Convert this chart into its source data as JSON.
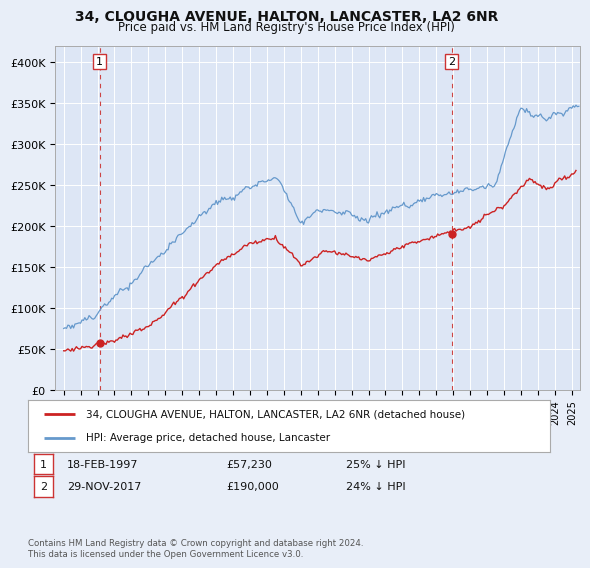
{
  "title": "34, CLOUGHA AVENUE, HALTON, LANCASTER, LA2 6NR",
  "subtitle": "Price paid vs. HM Land Registry's House Price Index (HPI)",
  "bg_color": "#e8eef8",
  "plot_bg_color": "#dde6f5",
  "grid_color": "#ffffff",
  "red_line_label": "34, CLOUGHA AVENUE, HALTON, LANCASTER, LA2 6NR (detached house)",
  "blue_line_label": "HPI: Average price, detached house, Lancaster",
  "annotation1_date": "18-FEB-1997",
  "annotation1_price": "£57,230",
  "annotation1_hpi": "25% ↓ HPI",
  "annotation2_date": "29-NOV-2017",
  "annotation2_price": "£190,000",
  "annotation2_hpi": "24% ↓ HPI",
  "footer": "Contains HM Land Registry data © Crown copyright and database right 2024.\nThis data is licensed under the Open Government Licence v3.0.",
  "ylim": [
    0,
    420000
  ],
  "yticks": [
    0,
    50000,
    100000,
    150000,
    200000,
    250000,
    300000,
    350000,
    400000
  ],
  "ytick_labels": [
    "£0",
    "£50K",
    "£100K",
    "£150K",
    "£200K",
    "£250K",
    "£300K",
    "£350K",
    "£400K"
  ],
  "sale1_year": 1997.13,
  "sale1_value": 57230,
  "sale2_year": 2017.91,
  "sale2_value": 190000,
  "red_color": "#cc2222",
  "blue_color": "#6699cc",
  "dashed_color": "#cc4444",
  "legend_border_color": "#aaaaaa",
  "spine_color": "#aaaaaa"
}
